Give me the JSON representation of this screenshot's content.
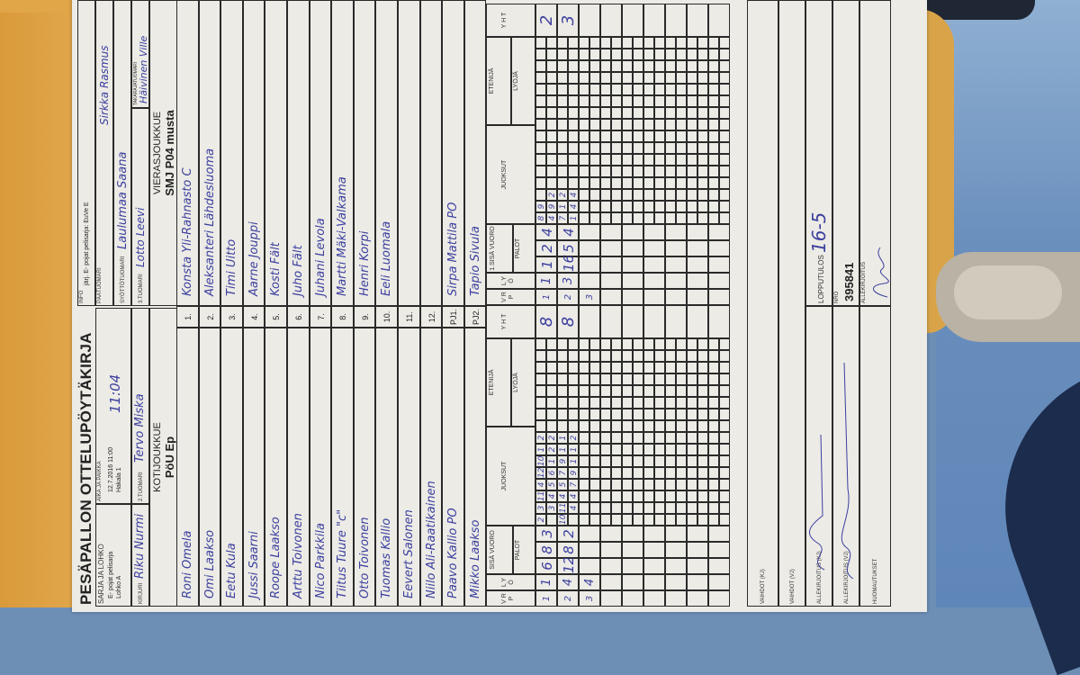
{
  "form": {
    "title": "PESÄPALLON OTTELUPÖYTÄKIRJA",
    "sarja_label": "SARJA JA LOHKO",
    "sarja_value_1": "E- pojat pelisarja",
    "sarja_value_2": "Lohko A",
    "aika_label": "AIKA JA PAIKKA",
    "aika_value_1": "12.7.2016 11:00",
    "aika_value_2": "Hakala 1",
    "aika_handwritten": "11:04",
    "kirjuri_label": "KIRJURI",
    "kirjuri_value": "Riku Nurmi",
    "tuomari2_label": "2.TUOMARI",
    "tuomari2_value": "Tervo Miska",
    "info_label": "INFO",
    "info_value": "järj. E- pojat pelisarja: EuVe E",
    "paatuomari_label": "PÄÄTUOMARI",
    "paatuomari_value": "Sirkka Rasmus",
    "syottotuomari_label": "SYÖTTÖTUOMARI",
    "syottotuomari_value": "Laulumaa Saana",
    "tuomari3_label": "3.TUOMARI",
    "tuomari3_value": "Lotto Leevi",
    "takarajatuomari_label": "TAKARAJATUOMARI",
    "takarajatuomari_value": "Häivinen Ville"
  },
  "home": {
    "label": "KOTIJOUKKUE",
    "name": "PöU Ep",
    "players": [
      "Roni Omela",
      "Omi Laakso",
      "Eetu Kula",
      "Jussi Saarni",
      "Roope Laakso",
      "Arttu Toivonen",
      "Nico Parkkila",
      "Tiitus Tuure  \"c\"",
      "Otto Toivonen",
      "Tuomas Kallio",
      "Eevert Salonen",
      "Niilo Ali-Raatikainen",
      "Paavo Kallio  PO",
      "Mikko Laakso"
    ]
  },
  "away": {
    "label": "VIERASJOUKKUE",
    "name": "SMJ P04 musta",
    "players": [
      "Konsta Yli-Rahnasto   C",
      "Aleksanteri Lähdesluoma",
      "Timi Uitto",
      "Aarne Jouppi",
      "Kosti Fält",
      "Juho Fält",
      "Juhani Levola",
      "Martti Mäki-Valkama",
      "Henri Korpi",
      "Eeli Luomala",
      "",
      "",
      "Sirpa Mattila   PO",
      "Tapio Sivula"
    ]
  },
  "numbers": [
    "1.",
    "2.",
    "3.",
    "4.",
    "5.",
    "6.",
    "7.",
    "8.",
    "9.",
    "10.",
    "11.",
    "12.",
    "PJ1.",
    "PJ2."
  ],
  "score_headers": {
    "vrp": "V R P",
    "lyo": "L Y Ö",
    "home_sisa": "SISÄ VUORO",
    "away_sisa": "1.SISÄ VUORO",
    "palot": "PALOT",
    "juoksut": "JUOKSUT",
    "etenija": "ETENIJÄ",
    "lyoja": "LYÖJÄ",
    "yht": "Y H T"
  },
  "home_innings": [
    {
      "vrp": "1",
      "lyo": "1",
      "palot": [
        "6",
        "8",
        "3"
      ],
      "juoksut": [
        [
          "2",
          "3",
          "11",
          "4",
          "12",
          "10",
          "1",
          "2"
        ],
        [
          "",
          "3",
          "4",
          "5",
          "6",
          "1",
          "2",
          "2"
        ]
      ],
      "yht": "8"
    },
    {
      "vrp": "2",
      "lyo": "4",
      "palot": [
        "12",
        "8",
        "2"
      ],
      "juoksut": [
        [
          "10",
          "11",
          "4",
          "5",
          "7",
          "9",
          "1",
          "1"
        ],
        [
          "",
          "4",
          "4",
          "7",
          "9",
          "1",
          "1",
          "2"
        ]
      ],
      "yht": "8"
    },
    {
      "vrp": "3",
      "lyo": "4",
      "palot": [
        "",
        "",
        ""
      ],
      "juoksut": [
        [],
        []
      ],
      "yht": ""
    }
  ],
  "away_innings": [
    {
      "vrp": "1",
      "lyo": "1",
      "palot": [
        "1",
        "2",
        "4"
      ],
      "juoksut": [
        [
          "8",
          "9"
        ],
        [
          "4",
          "9",
          "2"
        ]
      ],
      "yht": "2"
    },
    {
      "vrp": "2",
      "lyo": "3",
      "palot": [
        "16",
        "5",
        "4"
      ],
      "juoksut": [
        [
          "7",
          "1",
          "2"
        ],
        [
          "1",
          "4",
          "4"
        ]
      ],
      "yht": "3"
    },
    {
      "vrp": "3",
      "lyo": "",
      "palot": [
        "",
        "",
        ""
      ],
      "juoksut": [
        [],
        []
      ],
      "yht": ""
    }
  ],
  "footer": {
    "vaihdot_kj": "VAIHDOT (KJ)",
    "vaihdot_vj": "VAIHDOT (VJ)",
    "allekirjoitus_kj": "ALLEKIRJOITUS (KJ)",
    "allekirjoitus_vj": "ALLEKIRJOITUS (VJ)",
    "huomautukset": "HUOMAUTUKSET",
    "lopputulos_label": "LOPPUTULOS",
    "lopputulos_value": "16-5",
    "nro_label": "NRO",
    "nro_value": "395841",
    "allekirjoitus_label": "ALLEKIRJOITUS"
  },
  "colors": {
    "ink": "#3c3f9e",
    "paper": "#ecebe6",
    "wood": "#d99a3a",
    "carpet": "#6d8fb6"
  }
}
